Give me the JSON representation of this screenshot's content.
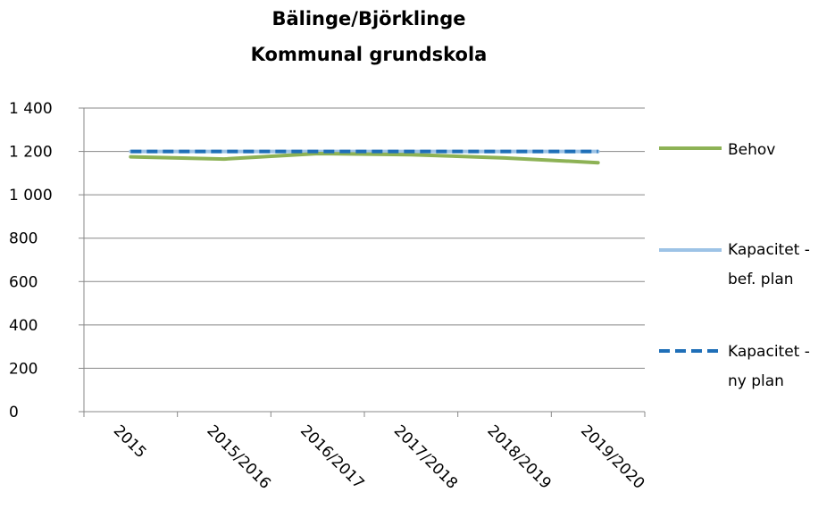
{
  "chart_data": {
    "type": "line",
    "title": [
      "Bälinge/Björklinge",
      "Kommunal grundskola"
    ],
    "categories": [
      "2015",
      "2015/2016",
      "2016/2017",
      "2017/2018",
      "2018/2019",
      "2019/2020"
    ],
    "y_tick_labels": [
      "0",
      "200",
      "400",
      "600",
      "800",
      "1 000",
      "1 200",
      "1 400"
    ],
    "ylim": [
      0,
      1400
    ],
    "grid": true,
    "legend_position": "right",
    "series": [
      {
        "name": "Behov",
        "values": [
          1175,
          1165,
          1190,
          1185,
          1170,
          1148
        ],
        "color": "#8DB255",
        "style": "solid"
      },
      {
        "name_lines": [
          "Kapacitet -",
          "bef. plan"
        ],
        "values": [
          1200,
          1200,
          1200,
          1200,
          1200,
          1200
        ],
        "color": "#9DC3E6",
        "style": "solid"
      },
      {
        "name_lines": [
          "Kapacitet -",
          "ny plan"
        ],
        "values": [
          1200,
          1200,
          1200,
          1200,
          1200,
          1200
        ],
        "color": "#1F6FB8",
        "style": "dashed"
      }
    ]
  }
}
